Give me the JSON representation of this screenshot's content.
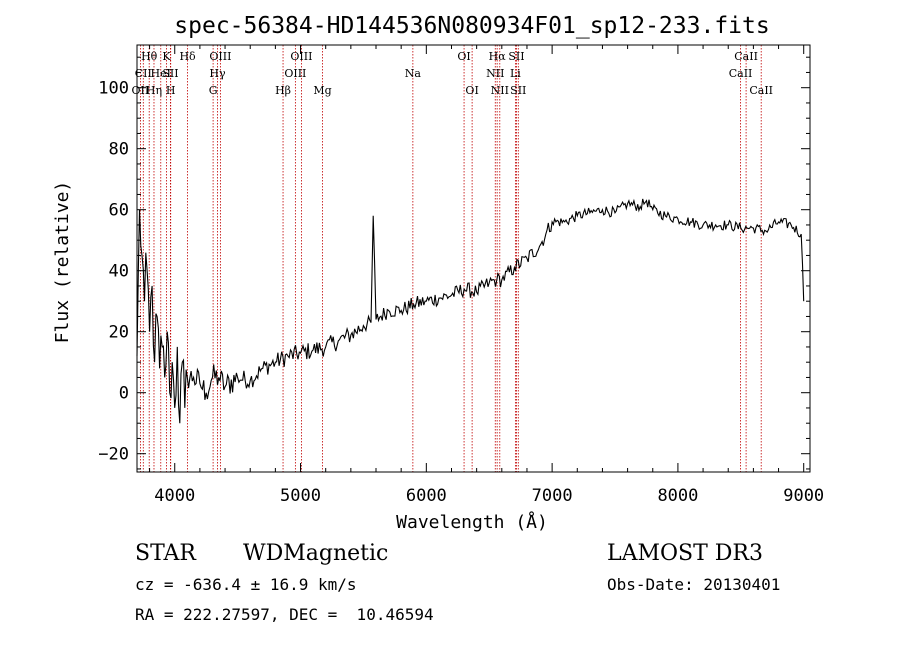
{
  "chart_data": {
    "type": "line",
    "title": "spec-56384-HD144536N080934F01_sp12-233.fits",
    "xlabel": "Wavelength (Å)",
    "ylabel": "Flux (relative)",
    "xlim": [
      3700,
      9050
    ],
    "ylim": [
      -26,
      114
    ],
    "xticks": [
      4000,
      5000,
      6000,
      7000,
      8000,
      9000
    ],
    "yticks": [
      -20,
      0,
      20,
      40,
      60,
      80,
      100
    ],
    "grid": false,
    "series": [
      {
        "x": [
          3700,
          3720,
          3740,
          3760,
          3780,
          3800,
          3820,
          3840,
          3860,
          3880,
          3900,
          3920,
          3940,
          3960,
          3980,
          4000,
          4020,
          4040,
          4060,
          4080,
          4100,
          4150,
          4200,
          4250,
          4300,
          4350,
          4400,
          4500,
          4600,
          4700,
          4800,
          4900,
          5000,
          5100,
          5200,
          5300,
          5400,
          5500,
          5560,
          5578,
          5600,
          5700,
          5800,
          5900,
          6000,
          6100,
          6200,
          6300,
          6400,
          6500,
          6560,
          6600,
          6700,
          6800,
          6900,
          6950,
          7000,
          7100,
          7200,
          7300,
          7400,
          7500,
          7600,
          7700,
          7750,
          7800,
          7900,
          8000,
          8100,
          8200,
          8300,
          8400,
          8500,
          8600,
          8700,
          8800,
          8900,
          8980,
          9000
        ],
        "y": [
          12,
          60,
          45,
          30,
          40,
          20,
          35,
          10,
          25,
          8,
          15,
          5,
          20,
          0,
          10,
          -5,
          15,
          -10,
          10,
          -5,
          5,
          5,
          3,
          0,
          5,
          5,
          2,
          5,
          4,
          8,
          10,
          12,
          13,
          14,
          15,
          17,
          19,
          22,
          23,
          58,
          24,
          27,
          27,
          29,
          30,
          31,
          32,
          34,
          33,
          36,
          37,
          37,
          41,
          44,
          48,
          52,
          56,
          56,
          58,
          59,
          60,
          59,
          62,
          61,
          63,
          60,
          58,
          57,
          56,
          55,
          55,
          55,
          54,
          54,
          53,
          56,
          55,
          52,
          30
        ]
      }
    ],
    "spectral_lines": [
      {
        "label": "Hθ",
        "x": 3797,
        "row": 1
      },
      {
        "label": "CII",
        "x": 3750,
        "row": 2
      },
      {
        "label": "OII",
        "x": 3727,
        "row": 3
      },
      {
        "label": "Hη",
        "x": 3835,
        "row": 3
      },
      {
        "label": "HeI",
        "x": 3889,
        "row": 2
      },
      {
        "label": "K",
        "x": 3934,
        "row": 1
      },
      {
        "label": "SII",
        "x": 3966,
        "row": 2
      },
      {
        "label": "H",
        "x": 3968,
        "row": 3
      },
      {
        "label": "Hδ",
        "x": 4102,
        "row": 1
      },
      {
        "label": "OIII",
        "x": 4363,
        "row": 1
      },
      {
        "label": "Hγ",
        "x": 4340,
        "row": 2
      },
      {
        "label": "G",
        "x": 4305,
        "row": 3
      },
      {
        "label": "Hβ",
        "x": 4861,
        "row": 3
      },
      {
        "label": "OIII",
        "x": 4959,
        "row": 2
      },
      {
        "label": "OIII",
        "x": 5007,
        "row": 1
      },
      {
        "label": "Mg",
        "x": 5175,
        "row": 3
      },
      {
        "label": "Na",
        "x": 5893,
        "row": 2
      },
      {
        "label": "OI",
        "x": 6300,
        "row": 1
      },
      {
        "label": "OI",
        "x": 6364,
        "row": 3
      },
      {
        "label": "Hα",
        "x": 6563,
        "row": 1
      },
      {
        "label": "NII",
        "x": 6548,
        "row": 2
      },
      {
        "label": "NII",
        "x": 6584,
        "row": 3
      },
      {
        "label": "SII",
        "x": 6717,
        "row": 1
      },
      {
        "label": "Li",
        "x": 6708,
        "row": 2
      },
      {
        "label": "SII",
        "x": 6731,
        "row": 3
      },
      {
        "label": "CaII",
        "x": 8498,
        "row": 2
      },
      {
        "label": "CaII",
        "x": 8542,
        "row": 1
      },
      {
        "label": "CaII",
        "x": 8662,
        "row": 3
      }
    ]
  },
  "info": {
    "object_class": "STAR",
    "subclass": "WDMagnetic",
    "survey": "LAMOST DR3",
    "cz": "cz = -636.4 ± 16.9 km/s",
    "obs_date": "Obs-Date: 20130401",
    "coords": "RA = 222.27597, DEC =  10.46594"
  }
}
